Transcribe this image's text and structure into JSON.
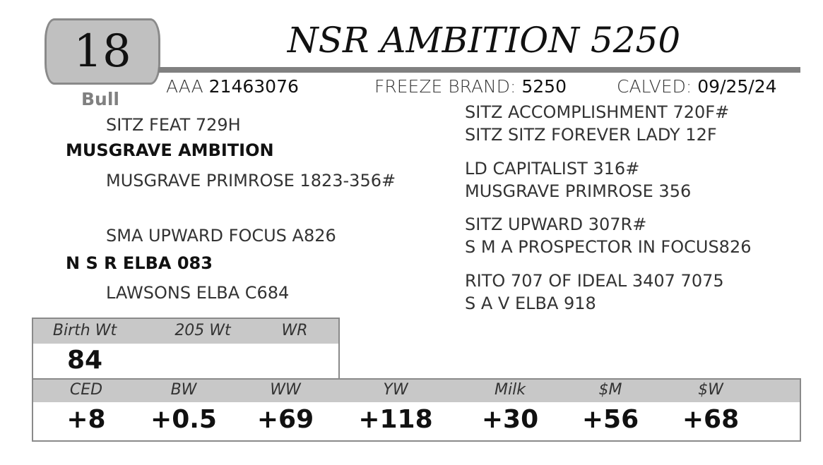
{
  "lot_number": "18",
  "animal_name": "NSR AMBITION 5250",
  "sex": "Bull",
  "registration": {
    "label": "AAA",
    "value": "21463076"
  },
  "freeze_brand": {
    "label": "FREEZE BRAND:",
    "value": "5250"
  },
  "calved": {
    "label": "CALVED:",
    "value": "09/25/24"
  },
  "pedigree": {
    "sire": "MUSGRAVE AMBITION",
    "sire_sire": "SITZ FEAT 729H",
    "sire_dam": "MUSGRAVE PRIMROSE 1823-356#",
    "dam": "N S R ELBA 083",
    "dam_sire": "SMA UPWARD FOCUS A826",
    "dam_dam": "LAWSONS ELBA C684",
    "ss_sire": "SITZ ACCOMPLISHMENT 720F#",
    "ss_dam": "SITZ SITZ FOREVER LADY 12F",
    "sd_sire": "LD CAPITALIST 316#",
    "sd_dam": "MUSGRAVE PRIMROSE 356",
    "ds_sire": "SITZ UPWARD 307R#",
    "ds_dam": "S M A PROSPECTOR IN FOCUS826",
    "dd_sire": "RITO 707 OF IDEAL 3407 7075",
    "dd_dam": "S A V ELBA 918"
  },
  "performance": {
    "headers": [
      "Birth Wt",
      "205 Wt",
      "WR"
    ],
    "values": [
      "84",
      "",
      ""
    ]
  },
  "epds": {
    "headers": [
      "CED",
      "BW",
      "WW",
      "YW",
      "Milk",
      "$M",
      "$W"
    ],
    "values": [
      "+8",
      "+0.5",
      "+69",
      "+118",
      "+30",
      "+56",
      "+68"
    ]
  }
}
